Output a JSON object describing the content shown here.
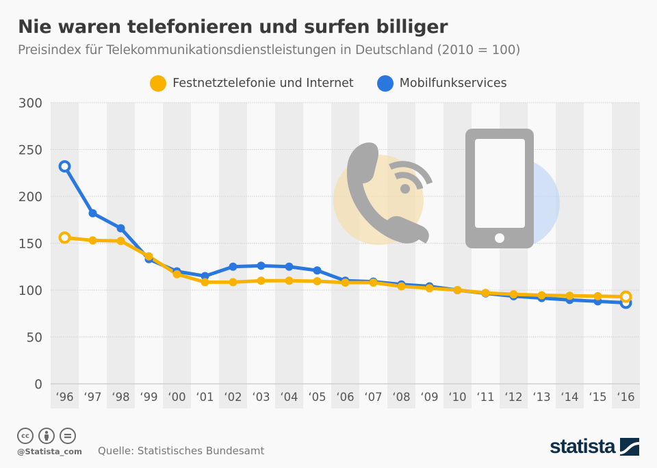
{
  "header": {
    "title": "Nie waren telefonieren und surfen billiger",
    "subtitle": "Preisindex für Telekommunikationsdienstleistungen in Deutschland (2010 = 100)"
  },
  "legend": [
    {
      "label": "Festnetztelefonie und Internet",
      "color": "#f9b200"
    },
    {
      "label": "Mobilfunkservices",
      "color": "#2a78df"
    }
  ],
  "illustrations": {
    "left_icon": "phone-handset-icon",
    "right_icon": "smartphone-icon"
  },
  "footer": {
    "license_icons": [
      "cc-icon",
      "by-attribution-icon",
      "nd-no-derivatives-icon"
    ],
    "cc_label": "cc",
    "handle": "@Statista_com",
    "source": "Quelle: Statistisches Bundesamt",
    "logo_text": "statista"
  },
  "chart_data": {
    "type": "line",
    "title": "Nie waren telefonieren und surfen billiger",
    "subtitle": "Preisindex für Telekommunikationsdienstleistungen in Deutschland (2010 = 100)",
    "xlabel": "",
    "ylabel": "",
    "categories": [
      "‘96",
      "‘97",
      "‘98",
      "‘99",
      "‘00",
      "‘01",
      "‘02",
      "‘03",
      "‘04",
      "‘05",
      "‘06",
      "‘07",
      "‘08",
      "‘09",
      "‘10",
      "‘11",
      "‘12",
      "‘13",
      "‘14",
      "‘15",
      "‘16"
    ],
    "ylim": [
      0,
      300
    ],
    "yticks": [
      0,
      50,
      100,
      150,
      200,
      250,
      300
    ],
    "grid": true,
    "legend_position": "top-center",
    "series": [
      {
        "name": "Festnetztelefonie und Internet",
        "color": "#f9b200",
        "values": [
          156,
          153,
          152.5,
          136,
          117,
          108.5,
          108.5,
          110,
          110,
          109.5,
          108,
          108,
          104,
          102,
          100,
          97,
          95.5,
          94.5,
          94,
          93.5,
          93
        ]
      },
      {
        "name": "Mobilfunkservices",
        "color": "#2a78df",
        "values": [
          232,
          182,
          166,
          133,
          120,
          115,
          125,
          126,
          125,
          121,
          110,
          109,
          106,
          104,
          100,
          96.5,
          93.5,
          91.5,
          89.5,
          88,
          86.5
        ]
      }
    ]
  }
}
